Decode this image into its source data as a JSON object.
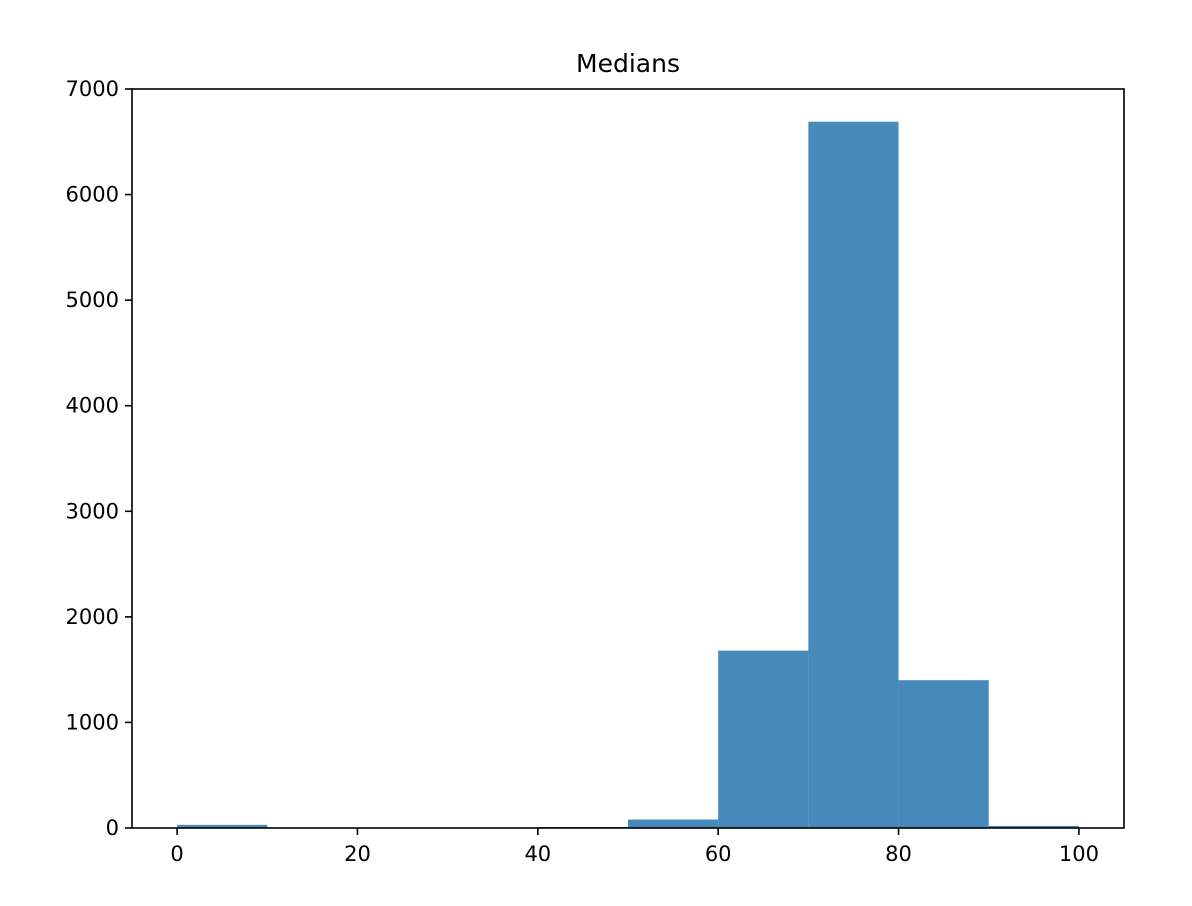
{
  "chart_data": {
    "type": "bar",
    "title": "Medians",
    "xlabel": "",
    "ylabel": "",
    "bin_edges": [
      0,
      10,
      20,
      30,
      40,
      50,
      60,
      70,
      80,
      90,
      100
    ],
    "values": [
      30,
      0,
      0,
      0,
      10,
      80,
      1680,
      6690,
      1400,
      20
    ],
    "xlim": [
      -5,
      105
    ],
    "ylim": [
      0,
      7000
    ],
    "xticks": [
      0,
      20,
      40,
      60,
      80,
      100
    ],
    "yticks": [
      0,
      1000,
      2000,
      3000,
      4000,
      5000,
      6000,
      7000
    ],
    "bar_color": "#4689bb",
    "grid": false,
    "legend": "none"
  }
}
